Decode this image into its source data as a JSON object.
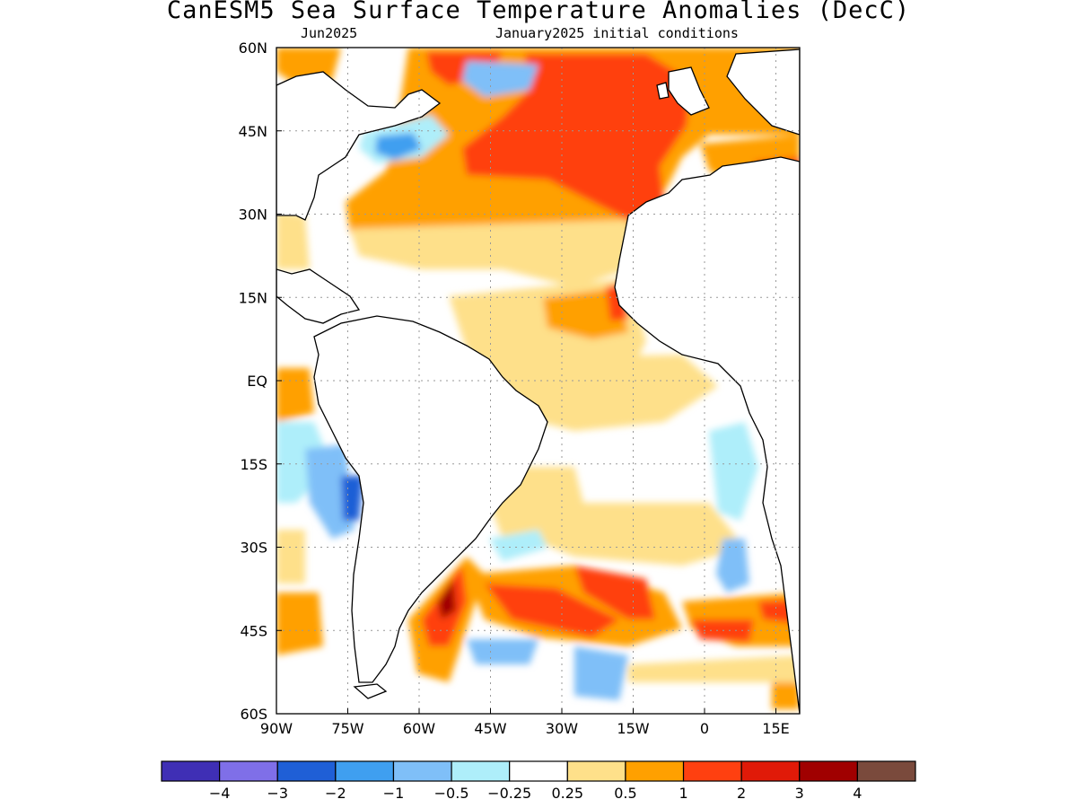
{
  "title": "CanESM5 Sea Surface Temperature Anomalies (DecC)",
  "subtitle_left": "Jun2025",
  "subtitle_right": "January2025 initial conditions",
  "map": {
    "region": "Atlantic Ocean",
    "lon_range": [
      -90,
      20
    ],
    "lat_range": [
      -60,
      60
    ],
    "lat_ticks": [
      {
        "value": 60,
        "label": "60N"
      },
      {
        "value": 45,
        "label": "45N"
      },
      {
        "value": 30,
        "label": "30N"
      },
      {
        "value": 15,
        "label": "15N"
      },
      {
        "value": 0,
        "label": "EQ"
      },
      {
        "value": -15,
        "label": "15S"
      },
      {
        "value": -30,
        "label": "30S"
      },
      {
        "value": -45,
        "label": "45S"
      },
      {
        "value": -60,
        "label": "60S"
      }
    ],
    "lon_ticks": [
      {
        "value": -90,
        "label": "90W"
      },
      {
        "value": -75,
        "label": "75W"
      },
      {
        "value": -60,
        "label": "60W"
      },
      {
        "value": -45,
        "label": "45W"
      },
      {
        "value": -30,
        "label": "30W"
      },
      {
        "value": -15,
        "label": "15W"
      },
      {
        "value": 0,
        "label": "0"
      },
      {
        "value": 15,
        "label": "15E"
      }
    ],
    "grid": true
  },
  "colorbar": {
    "colors": [
      "#3f2fb5",
      "#7f6fe8",
      "#1f5fd6",
      "#3f9ff0",
      "#7fbff8",
      "#aeeefa",
      "#ffffff",
      "#fee08a",
      "#ffa000",
      "#ff4010",
      "#e01a08",
      "#a00000",
      "#7a4a3c"
    ],
    "labels": [
      "−4",
      "−3",
      "−2",
      "−1",
      "−0.5",
      "−0.25",
      "0.25",
      "0.5",
      "1",
      "2",
      "3",
      "4"
    ]
  }
}
